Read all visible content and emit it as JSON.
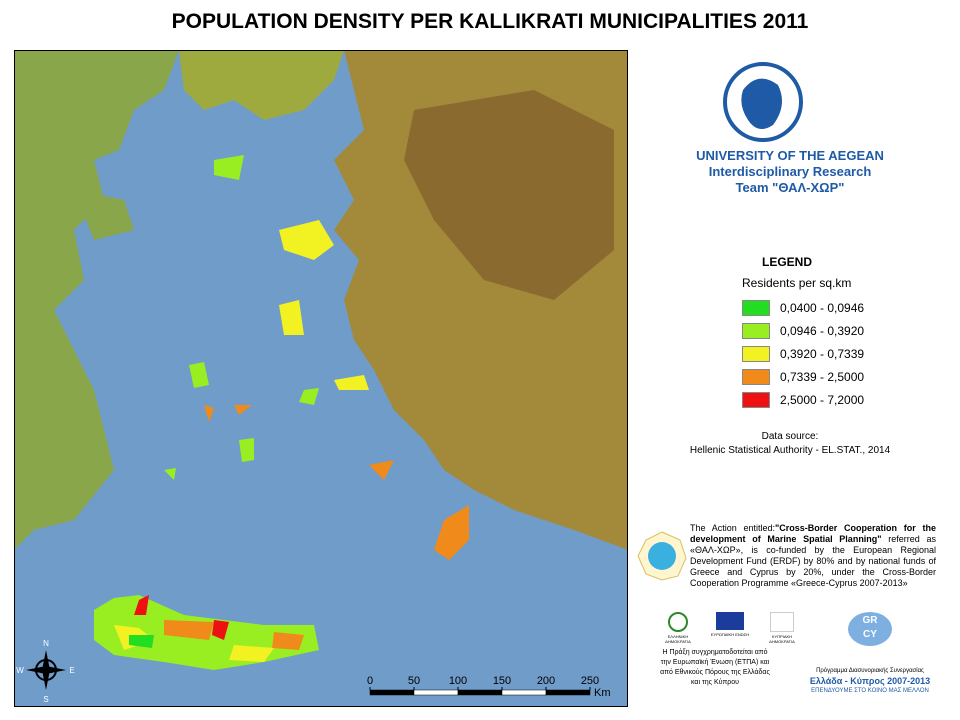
{
  "title": "POPULATION DENSITY PER KALLIKRATI MUNICIPALITIES 2011",
  "institution": {
    "name": "UNIVERSITY OF THE AEGEAN",
    "line2": "Interdisciplinary Research",
    "line3": "Team \"ΘΑΛ-ΧΩΡ\""
  },
  "legend": {
    "title": "LEGEND",
    "subtitle": "Residents per sq.km",
    "classes": [
      {
        "label": "0,0400 - 0,0946",
        "color": "#22dd22"
      },
      {
        "label": "0,0946 - 0,3920",
        "color": "#99ee22"
      },
      {
        "label": "0,3920 - 0,7339",
        "color": "#f2f222"
      },
      {
        "label": "0,7339 - 2,5000",
        "color": "#f08a1a"
      },
      {
        "label": "2,5000 - 7,2000",
        "color": "#ee1111"
      }
    ]
  },
  "source": {
    "heading": "Data source:",
    "text": "Hellenic Statistical Authority - EL.STAT., 2014"
  },
  "action_text": [
    {
      "text": "The Action entitled:",
      "bold": false
    },
    {
      "text": "\"Cross-Border Cooperation for the development of Marine Spatial Planning\"",
      "bold": true
    },
    {
      "text": " referred as «ΘΑΛ-ΧΩΡ», is co-funded by the European Regional Development Fund (ERDF) by 80% and by national funds of Greece and Cyprus by 20%, under the Cross-Border Cooperation Programme «Greece-Cyprus 2007-2013»",
      "bold": false
    }
  ],
  "logos": {
    "greece": "ΕΛΛΗΝΙΚΗ ΔΗΜΟΚΡΑΤΙΑ",
    "eu": "ΕΥΡΩΠΑΪΚΗ ΕΝΩΣΗ",
    "cyprus": "ΚΥΠΡΙΑΚΗ ΔΗΜΟΚΡΑΤΙΑ",
    "cofunding": "Η Πράξη συγχρηματοδοτείται από την Ευρωπαϊκή Ένωση (ΕΤΠΑ) και από Εθνικούς Πόρους της Ελλάδας και της Κύπρου",
    "programme": "Πρόγραμμα Διασυνοριακής Συνεργασίας",
    "programme_name": "Ελλάδα - Κύπρος 2007-2013",
    "motto": "ΕΠΕΝΔΥΟΥΜΕ ΣΤΟ ΚΟΙΝΟ ΜΑΣ ΜΕΛΛΟΝ",
    "grcy_1": "GR",
    "grcy_2": "CY"
  },
  "compass": {
    "n": "N",
    "s": "S",
    "e": "E",
    "w": "W"
  },
  "scale_bar": {
    "ticks": [
      0,
      50,
      100,
      150,
      200,
      250
    ],
    "unit": "Km"
  }
}
